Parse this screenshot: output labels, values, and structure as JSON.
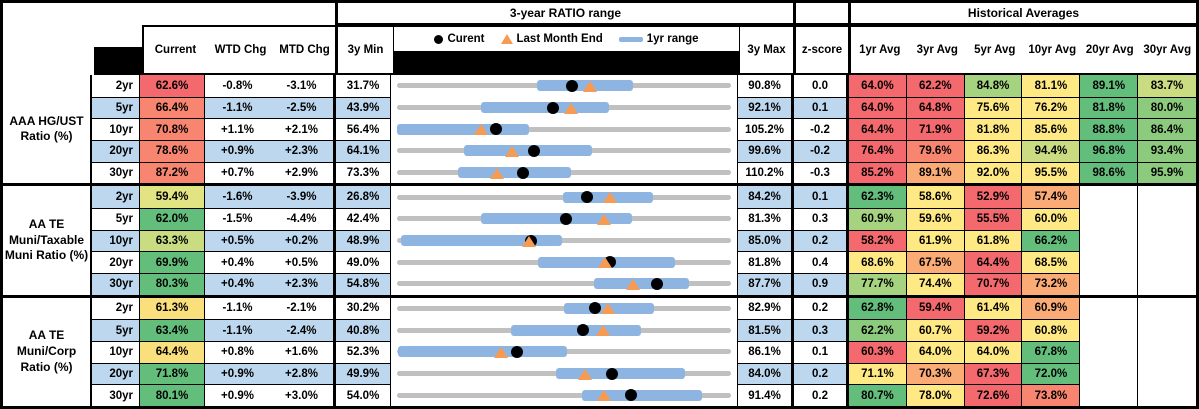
{
  "chart_data": {
    "type": "table",
    "header": {
      "range_title": "3-year RATIO range",
      "hist_title": "Historical Averages",
      "col_current": "Current",
      "col_wtd": "WTD Chg",
      "col_mtd": "MTD Chg",
      "col_min": "3y Min",
      "col_max": "3y Max",
      "col_z": "z-score",
      "avg_cols": [
        "1yr Avg",
        "3yr Avg",
        "5yr Avg",
        "10yr Avg",
        "20yr Avg",
        "30yr Avg"
      ]
    },
    "legend": [
      {
        "marker": "dot",
        "label": "Curent"
      },
      {
        "marker": "triangle",
        "label": "Last Month End"
      },
      {
        "marker": "bar",
        "label": "1yr range"
      }
    ],
    "colors": {
      "stripe": "#BDD7EE",
      "track": "#C0C0C0",
      "bar": "#8EB5E2",
      "dot": "#000000",
      "triangle": "#F79B53",
      "palette": {
        "R": "#F4696D",
        "S": "#F8856F",
        "O": "#FBAC76",
        "Y": "#FFE984",
        "Y3": "#FADF7D",
        "Y2": "#E2E383",
        "YG": "#C9DC81",
        "LG": "#A5D37F",
        "G2": "#8CCB7E",
        "G": "#63BE7B"
      }
    },
    "groups": [
      {
        "label": "AAA HG/UST Ratio (%)",
        "rows": [
          {
            "tenor": "2yr",
            "current": 62.6,
            "current_bg": "R",
            "wtd_chg": -0.8,
            "mtd_chg": -3.1,
            "min_3y": 31.7,
            "max_3y": 90.8,
            "z_score": 0.0,
            "range_1yr": [
              56.4,
              73.4
            ],
            "averages": [
              64.0,
              62.2,
              84.8,
              81.1,
              89.1,
              83.7
            ],
            "averages_bg": [
              "R",
              "R",
              "LG",
              "Y",
              "G",
              "YG"
            ]
          },
          {
            "tenor": "5yr",
            "current": 66.4,
            "current_bg": "S",
            "wtd_chg": -1.1,
            "mtd_chg": -2.5,
            "min_3y": 43.9,
            "max_3y": 92.1,
            "z_score": 0.1,
            "range_1yr": [
              56.0,
              74.4
            ],
            "averages": [
              64.0,
              64.8,
              75.6,
              76.2,
              81.8,
              80.0
            ],
            "averages_bg": [
              "R",
              "R",
              "Y",
              "Y",
              "G",
              "G2"
            ]
          },
          {
            "tenor": "10yr",
            "current": 70.8,
            "current_bg": "S",
            "wtd_chg": 1.1,
            "mtd_chg": 2.1,
            "min_3y": 56.4,
            "max_3y": 105.2,
            "z_score": -0.2,
            "range_1yr": [
              56.4,
              75.6
            ],
            "averages": [
              64.4,
              71.9,
              81.8,
              85.6,
              88.8,
              86.4
            ],
            "averages_bg": [
              "R",
              "R",
              "Y",
              "Y",
              "G",
              "G2"
            ]
          },
          {
            "tenor": "20yr",
            "current": 78.6,
            "current_bg": "S",
            "wtd_chg": 0.9,
            "mtd_chg": 2.3,
            "min_3y": 64.1,
            "max_3y": 99.6,
            "z_score": -0.2,
            "range_1yr": [
              71.2,
              84.8
            ],
            "averages": [
              76.4,
              79.6,
              86.3,
              94.4,
              96.8,
              93.4
            ],
            "averages_bg": [
              "R",
              "S",
              "Y",
              "YG",
              "G",
              "G2"
            ]
          },
          {
            "tenor": "30yr",
            "current": 87.2,
            "current_bg": "S",
            "wtd_chg": 0.7,
            "mtd_chg": 2.9,
            "min_3y": 73.3,
            "max_3y": 110.2,
            "z_score": -0.3,
            "range_1yr": [
              80.0,
              92.5
            ],
            "averages": [
              85.2,
              89.1,
              92.0,
              95.5,
              98.6,
              95.9
            ],
            "averages_bg": [
              "R",
              "O",
              "Y",
              "Y",
              "G",
              "G2"
            ]
          }
        ]
      },
      {
        "label": "AA TE Muni/Taxable Muni Ratio (%)",
        "rows": [
          {
            "tenor": "2yr",
            "current": 59.4,
            "current_bg": "Y2",
            "wtd_chg": -1.6,
            "mtd_chg": -3.9,
            "min_3y": 26.8,
            "max_3y": 84.2,
            "z_score": 0.1,
            "range_1yr": [
              55.3,
              70.6
            ],
            "averages": [
              62.3,
              58.6,
              52.9,
              57.4,
              null,
              null
            ],
            "averages_bg": [
              "G",
              "Y",
              "R",
              "O",
              null,
              null
            ]
          },
          {
            "tenor": "5yr",
            "current": 62.0,
            "current_bg": "G",
            "wtd_chg": -1.5,
            "mtd_chg": -4.4,
            "min_3y": 42.4,
            "max_3y": 81.3,
            "z_score": 0.3,
            "range_1yr": [
              52.2,
              69.7
            ],
            "averages": [
              60.9,
              59.6,
              55.5,
              60.0,
              null,
              null
            ],
            "averages_bg": [
              "LG",
              "Y",
              "R",
              "Y",
              null,
              null
            ]
          },
          {
            "tenor": "10yr",
            "current": 63.3,
            "current_bg": "YG",
            "wtd_chg": 0.5,
            "mtd_chg": 0.2,
            "min_3y": 48.9,
            "max_3y": 85.0,
            "z_score": 0.2,
            "range_1yr": [
              49.3,
              66.7
            ],
            "averages": [
              58.2,
              61.9,
              61.8,
              66.2,
              null,
              null
            ],
            "averages_bg": [
              "R",
              "Y",
              "Y",
              "G",
              null,
              null
            ]
          },
          {
            "tenor": "20yr",
            "current": 69.9,
            "current_bg": "G",
            "wtd_chg": 0.4,
            "mtd_chg": 0.5,
            "min_3y": 49.0,
            "max_3y": 81.8,
            "z_score": 0.4,
            "range_1yr": [
              62.8,
              76.2
            ],
            "averages": [
              68.6,
              67.5,
              64.4,
              68.5,
              null,
              null
            ],
            "averages_bg": [
              "Y",
              "O",
              "R",
              "Y",
              null,
              null
            ]
          },
          {
            "tenor": "30yr",
            "current": 80.3,
            "current_bg": "G",
            "wtd_chg": 0.4,
            "mtd_chg": 2.3,
            "min_3y": 54.8,
            "max_3y": 87.7,
            "z_score": 0.9,
            "range_1yr": [
              74.1,
              83.5
            ],
            "averages": [
              77.7,
              74.4,
              70.7,
              73.2,
              null,
              null
            ],
            "averages_bg": [
              "LG",
              "Y",
              "R",
              "O",
              null,
              null
            ]
          }
        ]
      },
      {
        "label": "AA TE Muni/Corp Ratio (%)",
        "rows": [
          {
            "tenor": "2yr",
            "current": 61.3,
            "current_bg": "Y3",
            "wtd_chg": -1.1,
            "mtd_chg": -2.1,
            "min_3y": 30.2,
            "max_3y": 82.9,
            "z_score": 0.2,
            "range_1yr": [
              56.4,
              70.6
            ],
            "averages": [
              62.8,
              59.4,
              61.4,
              60.9,
              null,
              null
            ],
            "averages_bg": [
              "G",
              "R",
              "Y",
              "O",
              null,
              null
            ]
          },
          {
            "tenor": "5yr",
            "current": 63.4,
            "current_bg": "G",
            "wtd_chg": -1.1,
            "mtd_chg": -2.4,
            "min_3y": 40.8,
            "max_3y": 81.5,
            "z_score": 0.3,
            "range_1yr": [
              54.7,
              70.5
            ],
            "averages": [
              62.2,
              60.7,
              59.2,
              60.8,
              null,
              null
            ],
            "averages_bg": [
              "G2",
              "Y",
              "R",
              "Y",
              null,
              null
            ]
          },
          {
            "tenor": "10yr",
            "current": 64.4,
            "current_bg": "Y3",
            "wtd_chg": 0.8,
            "mtd_chg": 1.6,
            "min_3y": 52.3,
            "max_3y": 86.1,
            "z_score": 0.1,
            "range_1yr": [
              52.4,
              69.5
            ],
            "averages": [
              60.3,
              64.0,
              64.0,
              67.8,
              null,
              null
            ],
            "averages_bg": [
              "R",
              "Y",
              "Y",
              "G",
              null,
              null
            ]
          },
          {
            "tenor": "20yr",
            "current": 71.8,
            "current_bg": "G",
            "wtd_chg": 0.9,
            "mtd_chg": 2.8,
            "min_3y": 49.9,
            "max_3y": 84.0,
            "z_score": 0.2,
            "range_1yr": [
              66.1,
              79.2
            ],
            "averages": [
              71.1,
              70.3,
              67.3,
              72.0,
              null,
              null
            ],
            "averages_bg": [
              "Y",
              "O",
              "R",
              "G",
              null,
              null
            ]
          },
          {
            "tenor": "30yr",
            "current": 80.1,
            "current_bg": "G",
            "wtd_chg": 0.9,
            "mtd_chg": 3.0,
            "min_3y": 54.0,
            "max_3y": 91.4,
            "z_score": 0.2,
            "range_1yr": [
              74.6,
              88.0
            ],
            "averages": [
              80.7,
              78.0,
              72.6,
              73.8,
              null,
              null
            ],
            "averages_bg": [
              "G",
              "Y",
              "R",
              "S",
              null,
              null
            ]
          }
        ]
      }
    ]
  }
}
